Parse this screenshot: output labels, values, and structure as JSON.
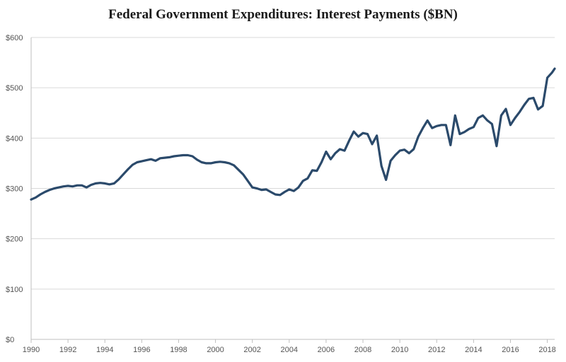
{
  "chart_data": {
    "type": "line",
    "title": "Federal Government Expenditures: Interest Payments ($BN)",
    "xlabel": "",
    "ylabel": "",
    "xlim": [
      1990,
      2018.4
    ],
    "ylim": [
      0,
      600
    ],
    "y_ticks": [
      0,
      100,
      200,
      300,
      400,
      500,
      600
    ],
    "y_tick_labels": [
      "$0",
      "$100",
      "$200",
      "$300",
      "$400",
      "$500",
      "$600"
    ],
    "x_ticks": [
      1990,
      1992,
      1994,
      1996,
      1998,
      2000,
      2002,
      2004,
      2006,
      2008,
      2010,
      2012,
      2014,
      2016,
      2018
    ],
    "x_tick_labels": [
      "1990",
      "1992",
      "1994",
      "1996",
      "1998",
      "2000",
      "2002",
      "2004",
      "2006",
      "2008",
      "2010",
      "2012",
      "2014",
      "2016",
      "2018"
    ],
    "grid": true,
    "line_color": "#2b4a6b",
    "series": [
      {
        "name": "",
        "points": [
          [
            1990.0,
            278
          ],
          [
            1990.25,
            282
          ],
          [
            1990.5,
            288
          ],
          [
            1990.75,
            293
          ],
          [
            1991.0,
            297
          ],
          [
            1991.25,
            300
          ],
          [
            1991.5,
            302
          ],
          [
            1991.75,
            304
          ],
          [
            1992.0,
            305
          ],
          [
            1992.25,
            304
          ],
          [
            1992.5,
            306
          ],
          [
            1992.75,
            306
          ],
          [
            1993.0,
            302
          ],
          [
            1993.25,
            307
          ],
          [
            1993.5,
            310
          ],
          [
            1993.75,
            311
          ],
          [
            1994.0,
            310
          ],
          [
            1994.25,
            308
          ],
          [
            1994.5,
            310
          ],
          [
            1994.75,
            318
          ],
          [
            1995.0,
            328
          ],
          [
            1995.25,
            338
          ],
          [
            1995.5,
            347
          ],
          [
            1995.75,
            352
          ],
          [
            1996.0,
            354
          ],
          [
            1996.25,
            356
          ],
          [
            1996.5,
            358
          ],
          [
            1996.75,
            355
          ],
          [
            1997.0,
            360
          ],
          [
            1997.25,
            361
          ],
          [
            1997.5,
            362
          ],
          [
            1997.75,
            364
          ],
          [
            1998.0,
            365
          ],
          [
            1998.25,
            366
          ],
          [
            1998.5,
            366
          ],
          [
            1998.75,
            364
          ],
          [
            1999.0,
            357
          ],
          [
            1999.25,
            352
          ],
          [
            1999.5,
            350
          ],
          [
            1999.75,
            350
          ],
          [
            2000.0,
            352
          ],
          [
            2000.25,
            353
          ],
          [
            2000.5,
            352
          ],
          [
            2000.75,
            350
          ],
          [
            2001.0,
            346
          ],
          [
            2001.25,
            337
          ],
          [
            2001.5,
            328
          ],
          [
            2001.75,
            315
          ],
          [
            2002.0,
            302
          ],
          [
            2002.25,
            300
          ],
          [
            2002.5,
            297
          ],
          [
            2002.75,
            298
          ],
          [
            2003.0,
            293
          ],
          [
            2003.25,
            288
          ],
          [
            2003.5,
            287
          ],
          [
            2003.75,
            293
          ],
          [
            2004.0,
            298
          ],
          [
            2004.25,
            295
          ],
          [
            2004.5,
            302
          ],
          [
            2004.75,
            315
          ],
          [
            2005.0,
            320
          ],
          [
            2005.25,
            336
          ],
          [
            2005.5,
            335
          ],
          [
            2005.75,
            352
          ],
          [
            2006.0,
            373
          ],
          [
            2006.25,
            358
          ],
          [
            2006.5,
            370
          ],
          [
            2006.75,
            378
          ],
          [
            2007.0,
            375
          ],
          [
            2007.25,
            395
          ],
          [
            2007.5,
            413
          ],
          [
            2007.75,
            403
          ],
          [
            2008.0,
            410
          ],
          [
            2008.25,
            408
          ],
          [
            2008.5,
            388
          ],
          [
            2008.75,
            405
          ],
          [
            2009.0,
            345
          ],
          [
            2009.25,
            317
          ],
          [
            2009.5,
            355
          ],
          [
            2009.75,
            366
          ],
          [
            2010.0,
            375
          ],
          [
            2010.25,
            377
          ],
          [
            2010.5,
            370
          ],
          [
            2010.75,
            378
          ],
          [
            2011.0,
            403
          ],
          [
            2011.25,
            420
          ],
          [
            2011.5,
            435
          ],
          [
            2011.75,
            420
          ],
          [
            2012.0,
            424
          ],
          [
            2012.25,
            426
          ],
          [
            2012.5,
            426
          ],
          [
            2012.75,
            386
          ],
          [
            2013.0,
            445
          ],
          [
            2013.25,
            408
          ],
          [
            2013.5,
            412
          ],
          [
            2013.75,
            418
          ],
          [
            2014.0,
            422
          ],
          [
            2014.25,
            440
          ],
          [
            2014.5,
            445
          ],
          [
            2014.75,
            435
          ],
          [
            2015.0,
            428
          ],
          [
            2015.25,
            384
          ],
          [
            2015.5,
            445
          ],
          [
            2015.75,
            458
          ],
          [
            2016.0,
            426
          ],
          [
            2016.25,
            440
          ],
          [
            2016.5,
            452
          ],
          [
            2016.75,
            466
          ],
          [
            2017.0,
            478
          ],
          [
            2017.25,
            480
          ],
          [
            2017.5,
            457
          ],
          [
            2017.75,
            464
          ],
          [
            2018.0,
            520
          ],
          [
            2018.25,
            530
          ],
          [
            2018.4,
            538
          ]
        ]
      }
    ]
  }
}
